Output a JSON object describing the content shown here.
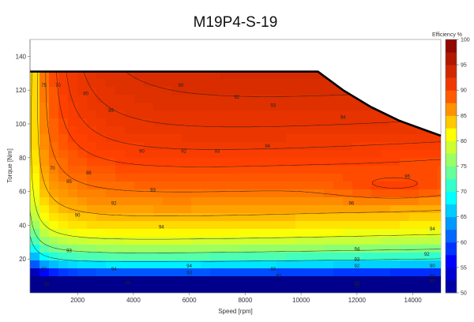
{
  "chart_data": {
    "type": "heatmap",
    "title": "M19P4-S-19",
    "xlabel": "Speed [rpm]",
    "ylabel": "Torque [Nm]",
    "xlim": [
      300,
      15000
    ],
    "ylim": [
      0,
      150
    ],
    "xticks": [
      2000,
      4000,
      6000,
      8000,
      10000,
      12000,
      14000
    ],
    "yticks": [
      20,
      40,
      60,
      80,
      100,
      120,
      140
    ],
    "colorbar": {
      "label": "Efficiency %",
      "range": [
        50,
        100
      ],
      "ticks": [
        50,
        55,
        60,
        65,
        70,
        75,
        80,
        85,
        90,
        95,
        100
      ]
    },
    "torque_envelope": {
      "speed": [
        300,
        10600,
        11500,
        12500,
        13500,
        14500,
        15000
      ],
      "torque": [
        131,
        131,
        120,
        110,
        102,
        96,
        93
      ]
    },
    "contour_levels": [
      70,
      75,
      80,
      85,
      88,
      90,
      91,
      92,
      93,
      94,
      95
    ],
    "peak_efficiency_region": "96+ % near 14000 rpm, 58–70 Nm",
    "contour_labels": [
      {
        "speed": 800,
        "torque": 122,
        "value": "75"
      },
      {
        "speed": 1300,
        "torque": 122,
        "value": "70"
      },
      {
        "speed": 2300,
        "torque": 117,
        "value": "80"
      },
      {
        "speed": 3200,
        "torque": 107,
        "value": "85"
      },
      {
        "speed": 5700,
        "torque": 122,
        "value": "90"
      },
      {
        "speed": 7700,
        "torque": 115,
        "value": "92"
      },
      {
        "speed": 9000,
        "torque": 110,
        "value": "93"
      },
      {
        "speed": 11500,
        "torque": 103,
        "value": "94"
      },
      {
        "speed": 13800,
        "torque": 68,
        "value": "95"
      },
      {
        "speed": 11800,
        "torque": 52,
        "value": "96"
      },
      {
        "speed": 4300,
        "torque": 83,
        "value": "90"
      },
      {
        "speed": 5800,
        "torque": 83,
        "value": "92"
      },
      {
        "speed": 7000,
        "torque": 83,
        "value": "93"
      },
      {
        "speed": 8800,
        "torque": 86,
        "value": "94"
      },
      {
        "speed": 1100,
        "torque": 73,
        "value": "70"
      },
      {
        "speed": 1700,
        "torque": 65,
        "value": "85"
      },
      {
        "speed": 2400,
        "torque": 70,
        "value": "88"
      },
      {
        "speed": 2000,
        "torque": 45,
        "value": "90"
      },
      {
        "speed": 3300,
        "torque": 52,
        "value": "92"
      },
      {
        "speed": 4700,
        "torque": 60,
        "value": "93"
      },
      {
        "speed": 5000,
        "torque": 38,
        "value": "94"
      },
      {
        "speed": 1700,
        "torque": 24,
        "value": "93"
      },
      {
        "speed": 800,
        "torque": 13,
        "value": "92"
      },
      {
        "speed": 900,
        "torque": 4,
        "value": "90"
      },
      {
        "speed": 3300,
        "torque": 13,
        "value": "94"
      },
      {
        "speed": 6000,
        "torque": 11,
        "value": "93"
      },
      {
        "speed": 6000,
        "torque": 15,
        "value": "94"
      },
      {
        "speed": 9000,
        "torque": 13,
        "value": "93"
      },
      {
        "speed": 9200,
        "torque": 9,
        "value": "92"
      },
      {
        "speed": 12000,
        "torque": 25,
        "value": "94"
      },
      {
        "speed": 12000,
        "torque": 19,
        "value": "93"
      },
      {
        "speed": 12000,
        "torque": 15,
        "value": "92"
      },
      {
        "speed": 14500,
        "torque": 22,
        "value": "92"
      },
      {
        "speed": 14700,
        "torque": 15,
        "value": "90"
      },
      {
        "speed": 14700,
        "torque": 9,
        "value": "88"
      },
      {
        "speed": 14700,
        "torque": 6,
        "value": "85"
      },
      {
        "speed": 14700,
        "torque": 37,
        "value": "94"
      },
      {
        "speed": 12000,
        "torque": 5,
        "value": "80"
      },
      {
        "speed": 12000,
        "torque": 3,
        "value": "75"
      },
      {
        "speed": 3800,
        "torque": 5,
        "value": "90"
      }
    ]
  }
}
